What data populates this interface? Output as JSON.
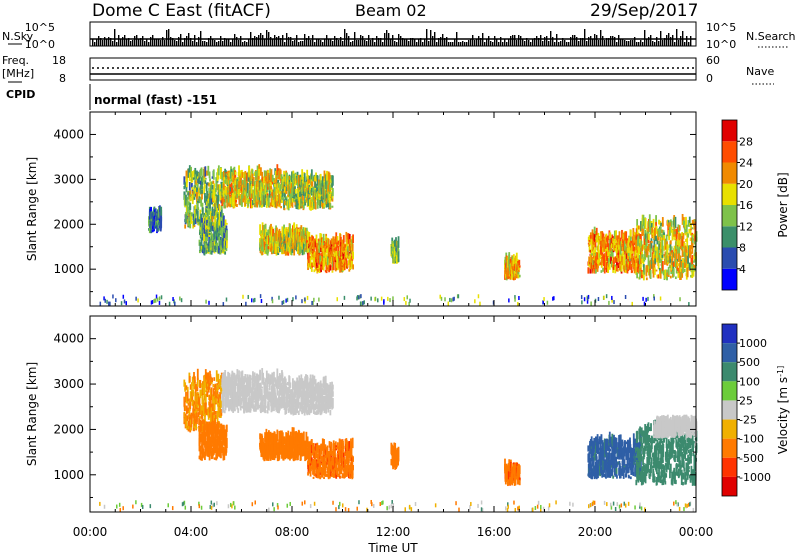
{
  "header": {
    "station": "Dome C East (fitACF)",
    "beam": "Beam 02",
    "date": "29/Sep/2017"
  },
  "summary_panels": {
    "nsky_label": "N.Sky",
    "nsky_top": "10^5",
    "nsky_bottom": "10^0",
    "nsearch_label": "N.Search",
    "nsearch_top": "10^5",
    "nsearch_bottom": "10^0",
    "freq_label_1": "Freq.",
    "freq_label_2": "[MHz]",
    "freq_top": "18",
    "freq_bottom": "8",
    "nave_label": "Nave",
    "nave_top": "60",
    "nave_bottom": "0",
    "cpid_label": "CPID",
    "cpid_text": "normal (fast) -151"
  },
  "chart_data": [
    {
      "type": "heatmap",
      "title": "",
      "quantity": "Power",
      "xlabel": "Time UT",
      "ylabel": "Slant Range [km]",
      "xlim": [
        0,
        24
      ],
      "ylim": [
        180,
        4500
      ],
      "x_ticks": [
        "00:00",
        "04:00",
        "08:00",
        "12:00",
        "16:00",
        "20:00",
        "00:00"
      ],
      "y_ticks": [
        "1000",
        "2000",
        "3000",
        "4000"
      ],
      "colorbar": {
        "label": "Power [dB]",
        "ticks": [
          "4",
          "8",
          "12",
          "16",
          "20",
          "24",
          "28"
        ],
        "range": [
          0,
          32
        ],
        "colors": [
          "#0000ff",
          "#2a4cb0",
          "#3b8f6a",
          "#7ec24a",
          "#e8e000",
          "#f08a00",
          "#ff4d00",
          "#e00000"
        ]
      },
      "regions": [
        {
          "t0": 3.7,
          "t1": 5.2,
          "r0": 1900,
          "r1": 3100,
          "value": 14
        },
        {
          "t0": 5.2,
          "t1": 7.6,
          "r0": 2350,
          "r1": 3100,
          "value": 18
        },
        {
          "t0": 7.6,
          "t1": 9.6,
          "r0": 2300,
          "r1": 3000,
          "value": 16
        },
        {
          "t0": 4.3,
          "t1": 5.4,
          "r0": 1300,
          "r1": 2000,
          "value": 12
        },
        {
          "t0": 6.7,
          "t1": 8.6,
          "r0": 1300,
          "r1": 1800,
          "value": 18
        },
        {
          "t0": 8.6,
          "t1": 10.4,
          "r0": 900,
          "r1": 1600,
          "value": 22
        },
        {
          "t0": 11.9,
          "t1": 12.2,
          "r0": 1100,
          "r1": 1500,
          "value": 14
        },
        {
          "t0": 16.4,
          "t1": 17.0,
          "r0": 750,
          "r1": 1150,
          "value": 20
        },
        {
          "t0": 19.7,
          "t1": 21.8,
          "r0": 900,
          "r1": 1700,
          "value": 22
        },
        {
          "t0": 21.6,
          "t1": 24.0,
          "r0": 750,
          "r1": 2000,
          "value": 18
        },
        {
          "t0": 2.3,
          "t1": 2.8,
          "r0": 1800,
          "r1": 2200,
          "value": 8
        }
      ]
    },
    {
      "type": "heatmap",
      "title": "",
      "quantity": "Velocity",
      "xlabel": "Time UT",
      "ylabel": "Slant Range [km]",
      "xlim": [
        0,
        24
      ],
      "ylim": [
        180,
        4500
      ],
      "x_ticks": [
        "00:00",
        "04:00",
        "08:00",
        "12:00",
        "16:00",
        "20:00",
        "00:00"
      ],
      "y_ticks": [
        "1000",
        "2000",
        "3000",
        "4000"
      ],
      "colorbar": {
        "label": "Velocity [m s^-1]",
        "ticks": [
          "1000",
          "500",
          "100",
          "25",
          "-25",
          "-100",
          "-500",
          "-1000"
        ],
        "colors": [
          "#2030c0",
          "#2f5fa6",
          "#3c8a6e",
          "#6ccc3a",
          "#c8c8c8",
          "#f0b000",
          "#ff7a00",
          "#ff3300",
          "#e00000"
        ]
      },
      "regions": [
        {
          "t0": 3.7,
          "t1": 5.2,
          "r0": 1900,
          "r1": 3100,
          "value": -100
        },
        {
          "t0": 5.2,
          "t1": 7.6,
          "r0": 2350,
          "r1": 3100,
          "value": 0
        },
        {
          "t0": 7.6,
          "t1": 9.6,
          "r0": 2300,
          "r1": 3000,
          "value": 0
        },
        {
          "t0": 4.3,
          "t1": 5.4,
          "r0": 1300,
          "r1": 2000,
          "value": -300
        },
        {
          "t0": 6.7,
          "t1": 8.6,
          "r0": 1300,
          "r1": 1800,
          "value": -300
        },
        {
          "t0": 8.6,
          "t1": 10.4,
          "r0": 900,
          "r1": 1600,
          "value": -400
        },
        {
          "t0": 11.9,
          "t1": 12.2,
          "r0": 1100,
          "r1": 1500,
          "value": -300
        },
        {
          "t0": 16.4,
          "t1": 17.0,
          "r0": 750,
          "r1": 1150,
          "value": -400
        },
        {
          "t0": 19.7,
          "t1": 21.8,
          "r0": 900,
          "r1": 1700,
          "value": 700
        },
        {
          "t0": 21.6,
          "t1": 24.0,
          "r0": 750,
          "r1": 2000,
          "value": 300
        },
        {
          "t0": 22.3,
          "t1": 24.0,
          "r0": 1800,
          "r1": 2100,
          "value": 0
        }
      ]
    }
  ]
}
